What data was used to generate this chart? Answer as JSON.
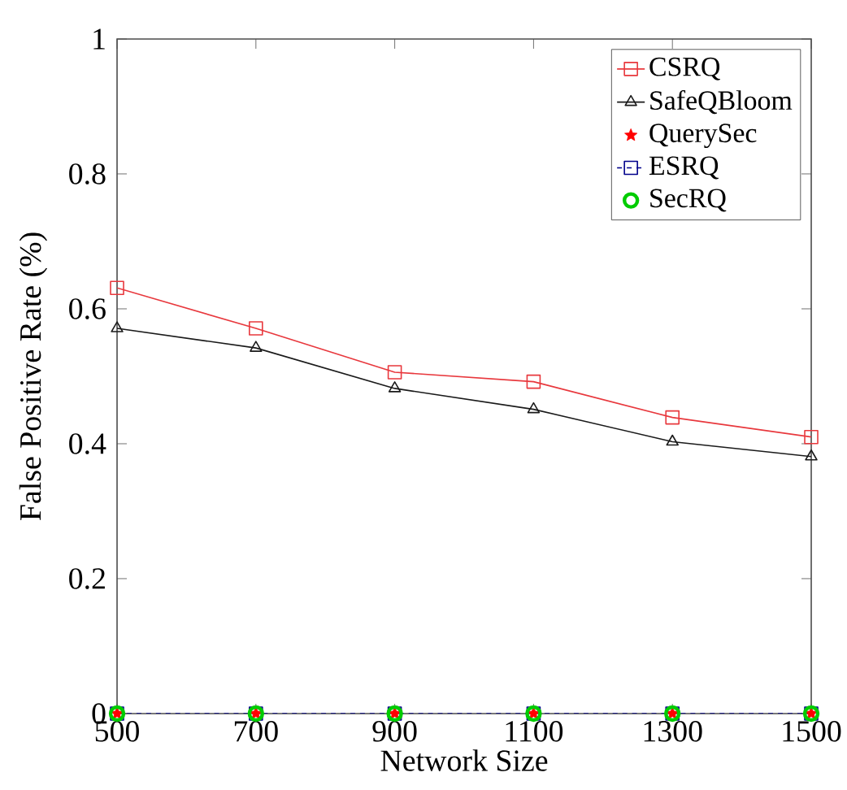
{
  "chart_data": {
    "type": "line",
    "xlabel": "Network Size",
    "ylabel": "False Positive Rate (%)",
    "x": [
      500,
      700,
      900,
      1100,
      1300,
      1500
    ],
    "xlim": [
      500,
      1500
    ],
    "xticks": [
      500,
      700,
      900,
      1100,
      1300,
      1500
    ],
    "ylim": [
      0,
      1
    ],
    "yticks": [
      0,
      0.2,
      0.4,
      0.6,
      0.8,
      1
    ],
    "legend": "top right",
    "series": [
      {
        "name": "CSRQ",
        "color": "#e8383d",
        "marker": "square",
        "line_style": "solid",
        "values": [
          0.631,
          0.571,
          0.506,
          0.492,
          0.439,
          0.41
        ]
      },
      {
        "name": "SafeQBloom",
        "color": "#1a1a1a",
        "marker": "triangle",
        "line_style": "solid",
        "values": [
          0.571,
          0.542,
          0.482,
          0.451,
          0.403,
          0.381
        ]
      },
      {
        "name": "QuerySec",
        "type": "scatter",
        "color": "#ff0000",
        "marker": "star",
        "values": [
          0,
          0,
          0,
          0,
          0,
          0
        ]
      },
      {
        "name": "ESRQ",
        "color": "#00008b",
        "marker": "square",
        "line_style": "dashed",
        "values": [
          0,
          0,
          0,
          0,
          0,
          0
        ]
      },
      {
        "name": "SecRQ",
        "type": "scatter",
        "color": "#00cc00",
        "marker": "circle",
        "values": [
          0,
          0,
          0,
          0,
          0,
          0
        ]
      }
    ]
  }
}
